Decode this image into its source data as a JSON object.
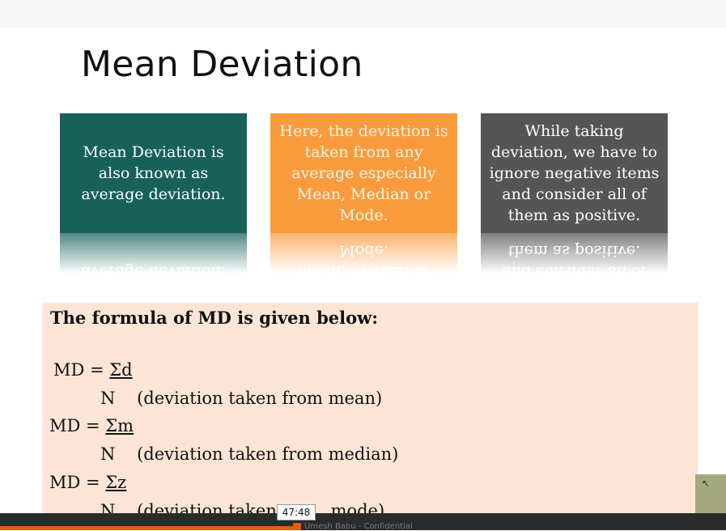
{
  "slide": {
    "title": "Mean Deviation",
    "cards": [
      {
        "text": "Mean Deviation is also known as average deviation.",
        "color": "#176159"
      },
      {
        "text": "Here, the deviation is taken from any average especially Mean, Median or Mode.",
        "color": "#f99b3d"
      },
      {
        "text": "While taking deviation, we have to ignore negative items and consider all of them as positive.",
        "color": "#555555"
      }
    ],
    "formula": {
      "heading": "The formula of MD is given below:",
      "md_label": "MD = ",
      "n_label": "N",
      "sum_d": "Σd",
      "note_mean": "(deviation taken from mean)",
      "sum_m": "Σm",
      "note_median": "(deviation taken from median)",
      "sum_z": "Σz",
      "note_mode_part1": "(deviation taken",
      "note_mode_part2": "mode)"
    }
  },
  "player": {
    "time": "47:48",
    "watermark": "Umesh Babu - Confidential",
    "progress_fraction": 0.41,
    "accent_color": "#e85b10"
  }
}
